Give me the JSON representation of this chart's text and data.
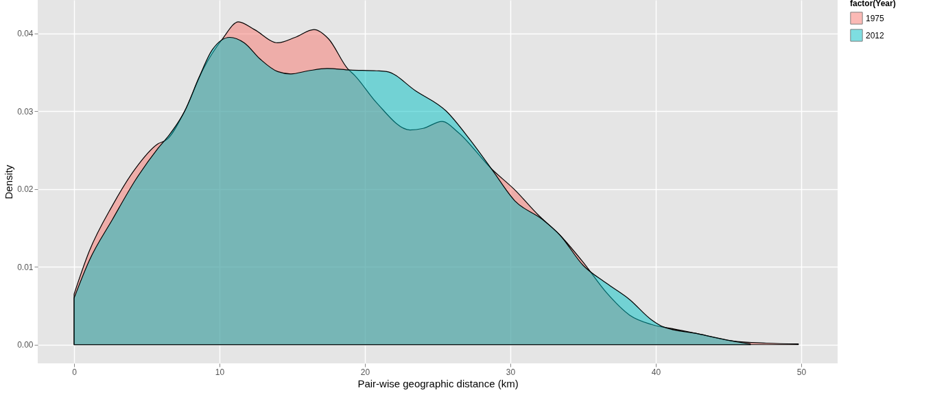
{
  "chart_data": {
    "type": "area",
    "xlabel": "Pair-wise geographic distance (km)",
    "ylabel": "Density",
    "legend_title": "factor(Year)",
    "legend": "right",
    "grid": true,
    "xlim": [
      -2.5,
      52.5
    ],
    "ylim": [
      -0.0024,
      0.0443
    ],
    "xticks": [
      0,
      10,
      20,
      30,
      40,
      50
    ],
    "yticks": [
      {
        "value": 0,
        "label": "0.00"
      },
      0.01,
      0.02,
      0.03,
      0.04
    ],
    "series": [
      {
        "name": "1975",
        "color": "#f8766d",
        "x": [
          0,
          1.04,
          2.64,
          4.2,
          5.75,
          6.4,
          7.6,
          8.9,
          10.2,
          11.3,
          12.4,
          14,
          15.2,
          16.5,
          17.5,
          18.8,
          19.3,
          20.8,
          23.1,
          24,
          25.3,
          26.4,
          28.7,
          30.3,
          31.9,
          33.4,
          35,
          36.6,
          38.2,
          39.7,
          41.3,
          42.9,
          45.2,
          47.6,
          49.8
        ],
        "values": [
          0.0065,
          0.012,
          0.0179,
          0.0226,
          0.0258,
          0.0264,
          0.03,
          0.0355,
          0.0393,
          0.0415,
          0.0405,
          0.0388,
          0.0395,
          0.0405,
          0.0393,
          0.0355,
          0.0346,
          0.0311,
          0.0276,
          0.0278,
          0.0287,
          0.0273,
          0.0226,
          0.0199,
          0.0167,
          0.0141,
          0.0106,
          0.0067,
          0.0038,
          0.0026,
          0.002,
          0.0014,
          0.0005,
          0.0002,
          0.0001
        ]
      },
      {
        "name": "2012",
        "color": "#00bfc4",
        "x": [
          0,
          1.04,
          2.64,
          4.2,
          5.75,
          6.56,
          7.6,
          8.6,
          9.5,
          10.7,
          11.7,
          12.8,
          14,
          14.9,
          16.1,
          17.4,
          19,
          20.8,
          21.5,
          23.5,
          25.6,
          27.2,
          28.7,
          30.3,
          32.2,
          33.4,
          35,
          36.6,
          38.2,
          39.7,
          40.5,
          42.9,
          45.2,
          46.5
        ],
        "values": [
          0.006,
          0.0108,
          0.0161,
          0.0211,
          0.0252,
          0.027,
          0.03,
          0.0344,
          0.0379,
          0.0395,
          0.0388,
          0.0367,
          0.0351,
          0.0348,
          0.0352,
          0.0355,
          0.0353,
          0.0352,
          0.0351,
          0.0326,
          0.03,
          0.0264,
          0.0226,
          0.0185,
          0.0161,
          0.0141,
          0.0102,
          0.0079,
          0.0058,
          0.0032,
          0.0023,
          0.0014,
          0.0005,
          0.0001
        ]
      }
    ]
  }
}
